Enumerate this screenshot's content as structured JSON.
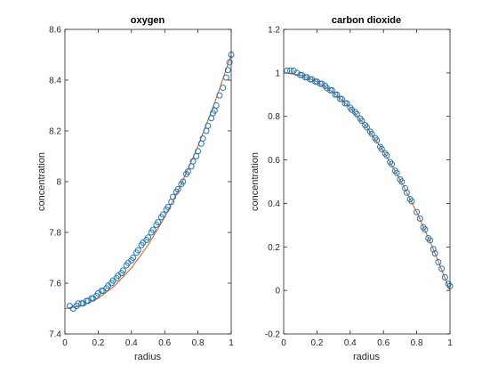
{
  "colors": {
    "marker": "#1f77b4",
    "fit": "#d95319",
    "axis": "#262626"
  },
  "chart_data": [
    {
      "type": "scatter",
      "title": "oxygen",
      "xlabel": "radius",
      "ylabel": "concentration",
      "xlim": [
        0,
        1
      ],
      "ylim": [
        7.4,
        8.6
      ],
      "xticks": [
        0,
        0.2,
        0.4,
        0.6,
        0.8,
        1
      ],
      "xtick_labels": [
        "0",
        "0.2",
        "0.4",
        "0.6",
        "0.8",
        "1"
      ],
      "yticks": [
        7.4,
        7.6,
        7.8,
        8.0,
        8.2,
        8.4,
        8.6
      ],
      "ytick_labels": [
        "7.4",
        "7.6",
        "7.8",
        "8",
        "8.2",
        "8.4",
        "8.6"
      ],
      "fit_line": {
        "x": [
          0,
          0.1,
          0.2,
          0.3,
          0.4,
          0.5,
          0.6,
          0.7,
          0.8,
          0.9,
          1.0
        ],
        "y": [
          7.5,
          7.51,
          7.54,
          7.59,
          7.66,
          7.75,
          7.86,
          7.99,
          8.14,
          8.31,
          8.5
        ]
      },
      "series": [
        {
          "x": [
            0.03,
            0.05,
            0.07,
            0.08,
            0.1,
            0.11,
            0.13,
            0.14,
            0.16,
            0.17,
            0.19,
            0.2,
            0.22,
            0.23,
            0.25,
            0.26,
            0.28,
            0.29,
            0.31,
            0.32,
            0.34,
            0.35,
            0.37,
            0.38,
            0.4,
            0.41,
            0.43,
            0.44,
            0.46,
            0.47,
            0.49,
            0.5,
            0.52,
            0.53,
            0.55,
            0.56,
            0.58,
            0.59,
            0.61,
            0.62,
            0.64,
            0.65,
            0.67,
            0.68,
            0.7,
            0.71,
            0.73,
            0.74,
            0.76,
            0.77,
            0.79,
            0.8,
            0.82,
            0.83,
            0.85,
            0.86,
            0.88,
            0.89,
            0.9,
            0.91,
            0.93,
            0.95,
            0.97,
            0.98,
            0.99,
            1.0
          ],
          "y": [
            7.51,
            7.5,
            7.51,
            7.52,
            7.52,
            7.52,
            7.53,
            7.53,
            7.54,
            7.54,
            7.55,
            7.56,
            7.57,
            7.57,
            7.58,
            7.59,
            7.6,
            7.61,
            7.62,
            7.63,
            7.64,
            7.65,
            7.67,
            7.68,
            7.69,
            7.7,
            7.72,
            7.73,
            7.75,
            7.76,
            7.77,
            7.78,
            7.8,
            7.81,
            7.83,
            7.84,
            7.86,
            7.87,
            7.89,
            7.9,
            7.92,
            7.94,
            7.96,
            7.97,
            7.99,
            8.0,
            8.03,
            8.04,
            8.06,
            8.08,
            8.1,
            8.12,
            8.15,
            8.17,
            8.2,
            8.22,
            8.25,
            8.27,
            8.28,
            8.3,
            8.34,
            8.37,
            8.41,
            8.44,
            8.47,
            8.5
          ]
        }
      ]
    },
    {
      "type": "scatter",
      "title": "carbon dioxide",
      "xlabel": "radius",
      "ylabel": "concentration",
      "xlim": [
        0,
        1
      ],
      "ylim": [
        -0.2,
        1.2
      ],
      "xticks": [
        0,
        0.2,
        0.4,
        0.6,
        0.8,
        1
      ],
      "xtick_labels": [
        "0",
        "0.2",
        "0.4",
        "0.6",
        "0.8",
        "1"
      ],
      "yticks": [
        -0.2,
        0,
        0.2,
        0.4,
        0.6,
        0.8,
        1.0,
        1.2
      ],
      "ytick_labels": [
        "-0.2",
        "0",
        "0.2",
        "0.4",
        "0.6",
        "0.8",
        "1",
        "1.2"
      ],
      "fit_line": {
        "x": [
          0,
          0.1,
          0.2,
          0.3,
          0.4,
          0.5,
          0.6,
          0.7,
          0.8,
          0.9,
          1.0
        ],
        "y": [
          1.0,
          0.99,
          0.96,
          0.91,
          0.84,
          0.75,
          0.64,
          0.51,
          0.36,
          0.19,
          0.0
        ]
      },
      "series": [
        {
          "x": [
            0.02,
            0.04,
            0.06,
            0.08,
            0.1,
            0.11,
            0.13,
            0.14,
            0.16,
            0.17,
            0.19,
            0.2,
            0.22,
            0.23,
            0.25,
            0.26,
            0.28,
            0.29,
            0.31,
            0.32,
            0.34,
            0.35,
            0.37,
            0.38,
            0.4,
            0.41,
            0.43,
            0.44,
            0.46,
            0.47,
            0.49,
            0.5,
            0.52,
            0.53,
            0.55,
            0.56,
            0.58,
            0.59,
            0.61,
            0.62,
            0.64,
            0.65,
            0.67,
            0.68,
            0.7,
            0.71,
            0.73,
            0.74,
            0.76,
            0.77,
            0.8,
            0.82,
            0.84,
            0.85,
            0.87,
            0.88,
            0.9,
            0.91,
            0.93,
            0.95,
            0.97,
            0.99,
            1.0
          ],
          "y": [
            1.01,
            1.01,
            1.01,
            1.0,
            0.99,
            0.99,
            0.98,
            0.98,
            0.97,
            0.97,
            0.96,
            0.96,
            0.95,
            0.95,
            0.94,
            0.93,
            0.92,
            0.92,
            0.9,
            0.9,
            0.88,
            0.88,
            0.86,
            0.86,
            0.84,
            0.83,
            0.82,
            0.81,
            0.79,
            0.78,
            0.76,
            0.75,
            0.73,
            0.72,
            0.7,
            0.69,
            0.66,
            0.65,
            0.63,
            0.62,
            0.59,
            0.58,
            0.55,
            0.54,
            0.51,
            0.5,
            0.47,
            0.45,
            0.42,
            0.41,
            0.36,
            0.33,
            0.29,
            0.28,
            0.24,
            0.23,
            0.19,
            0.17,
            0.13,
            0.1,
            0.06,
            0.03,
            0.02
          ]
        }
      ]
    }
  ]
}
